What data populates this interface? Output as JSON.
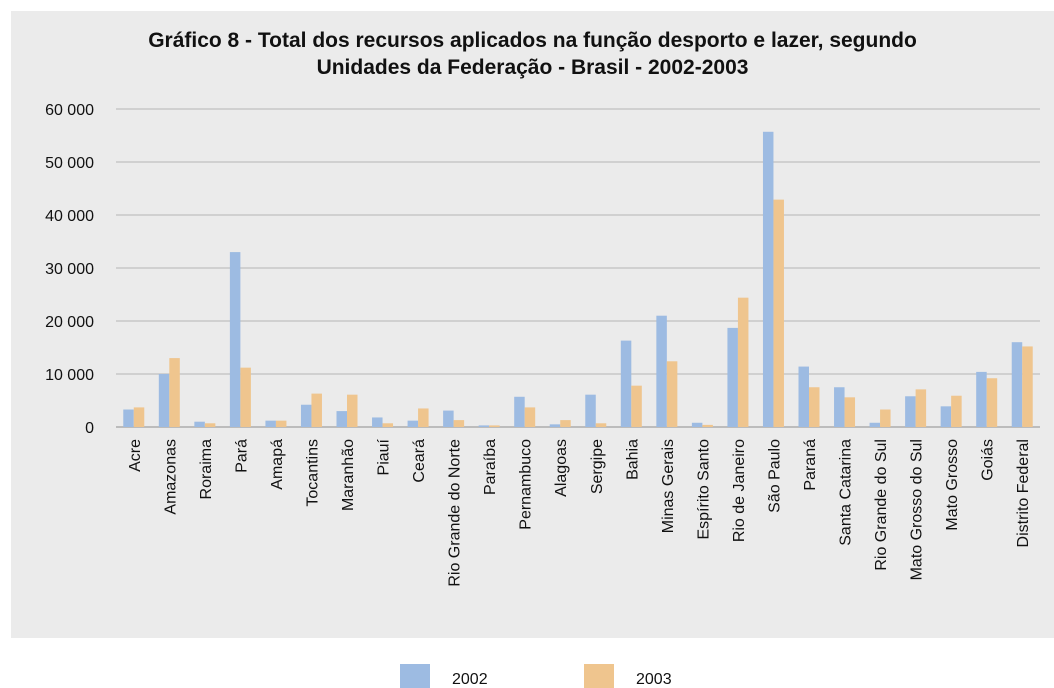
{
  "chart_data": {
    "type": "bar",
    "title_line1": "Gráfico 8 - Total dos recursos aplicados na função desporto e lazer, segundo",
    "title_line2": "Unidades da Federação - Brasil - 2002-2003",
    "xlabel": "",
    "ylabel": "",
    "ylim": [
      0,
      60000
    ],
    "yticks": [
      "0",
      "10 000",
      "20 000",
      "30 000",
      "40 000",
      "50 000",
      "60 000"
    ],
    "grid": true,
    "legend_position": "bottom",
    "categories": [
      "Acre",
      "Amazonas",
      "Roraima",
      "Pará",
      "Amapá",
      "Tocantins",
      "Maranhão",
      "Piauí",
      "Ceará",
      "Rio Grande do Norte",
      "Paraíba",
      "Pernambuco",
      "Alagoas",
      "Sergipe",
      "Bahia",
      "Minas Gerais",
      "Espírito Santo",
      "Rio de Janeiro",
      "São Paulo",
      "Paraná",
      "Santa Catarina",
      "Rio Grande do Sul",
      "Mato Grosso do Sul",
      "Mato Grosso",
      "Goiás",
      "Distrito Federal"
    ],
    "series": [
      {
        "name": "2002",
        "color": "#9dbbe2",
        "values": [
          3300,
          10000,
          1000,
          33000,
          1200,
          4200,
          3000,
          1800,
          1200,
          3100,
          300,
          5700,
          500,
          6100,
          16300,
          21000,
          800,
          18700,
          55700,
          11400,
          7500,
          800,
          5800,
          3900,
          10400,
          16000
        ]
      },
      {
        "name": "2003",
        "color": "#efc58e",
        "values": [
          3700,
          13000,
          700,
          11200,
          1200,
          6300,
          6100,
          700,
          3500,
          1300,
          300,
          3700,
          1300,
          700,
          7800,
          12400,
          400,
          24400,
          42900,
          7500,
          5600,
          3300,
          7100,
          5900,
          9200,
          15200
        ]
      }
    ]
  }
}
